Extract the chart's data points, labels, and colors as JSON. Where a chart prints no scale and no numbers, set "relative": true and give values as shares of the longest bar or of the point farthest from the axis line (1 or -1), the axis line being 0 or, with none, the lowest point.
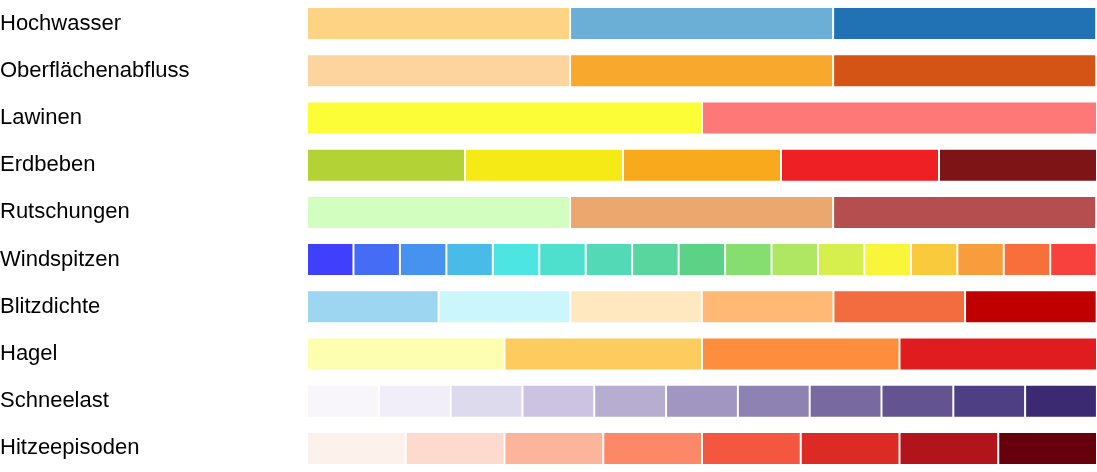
{
  "chart_data": {
    "type": "bar",
    "orientation": "horizontal",
    "stacked": true,
    "relative": true,
    "legend": false,
    "categories": [
      "Hochwasser",
      "Oberflächenabfluss",
      "Lawinen",
      "Erdbeben",
      "Rutschungen",
      "Windspitzen",
      "Blitzdichte",
      "Hagel",
      "Schneelast",
      "Hitzeepisoden"
    ],
    "series": [
      {
        "colors": [
          "#fed384",
          "#fdd49e",
          "#fdfd37",
          "#b2d235",
          "#d2ffc0",
          "#3f3ffc",
          "#9dd6f1",
          "#fefeb0",
          "#f8f5fb",
          "#fdf1ec"
        ],
        "values": [
          0.333,
          0.333,
          0.5,
          0.2,
          0.333,
          0.0588,
          0.1666,
          0.25,
          0.0909,
          0.125
        ]
      },
      {
        "colors": [
          "#6baed6",
          "#f8a92d",
          "#ff7878",
          "#f5e916",
          "#eaa86e",
          "#446cf5",
          "#cbf6fc",
          "#fecb5e",
          "#f1eefa",
          "#fddacd"
        ],
        "values": [
          0.333,
          0.333,
          0.5,
          0.2,
          0.333,
          0.0588,
          0.1666,
          0.25,
          0.0909,
          0.125
        ]
      },
      {
        "colors": [
          "#2171b5",
          "#d45416",
          null,
          "#f9aa1c",
          "#b54f4f",
          "#4593ee",
          "#ffe8c0",
          "#fe8d3e",
          "#dedaee",
          "#fcb49a"
        ],
        "values": [
          0.333,
          0.333,
          null,
          0.2,
          0.333,
          0.0588,
          0.1666,
          0.25,
          0.0909,
          0.125
        ]
      },
      {
        "colors": [
          null,
          null,
          null,
          "#ee2024",
          null,
          "#48bbe8",
          "#ffb975",
          "#e11c1e",
          "#cbc3e1",
          "#fc8868"
        ],
        "values": [
          null,
          null,
          null,
          0.2,
          null,
          0.0588,
          0.1666,
          0.25,
          0.0909,
          0.125
        ]
      },
      {
        "colors": [
          null,
          null,
          null,
          "#7f1416",
          null,
          "#4ce5e2",
          "#f36c40",
          null,
          "#b6add1",
          "#f5563f"
        ],
        "values": [
          null,
          null,
          null,
          0.2,
          null,
          0.0588,
          0.1666,
          null,
          0.0909,
          0.125
        ]
      },
      {
        "colors": [
          null,
          null,
          null,
          null,
          null,
          "#4fe0cd",
          "#c00000",
          null,
          "#a195c2",
          "#dc2a25"
        ],
        "values": [
          null,
          null,
          null,
          null,
          null,
          0.0588,
          0.1666,
          null,
          0.0909,
          0.125
        ]
      },
      {
        "colors": [
          null,
          null,
          null,
          null,
          null,
          "#53d9b6",
          null,
          null,
          "#8d82b2",
          "#b1141b"
        ],
        "values": [
          null,
          null,
          null,
          null,
          null,
          0.0588,
          null,
          null,
          0.0909,
          0.125
        ]
      },
      {
        "colors": [
          null,
          null,
          null,
          null,
          null,
          "#58d69e",
          null,
          null,
          "#786aa0",
          "#67000d"
        ],
        "values": [
          null,
          null,
          null,
          null,
          null,
          0.0588,
          null,
          null,
          0.0909,
          0.125
        ]
      },
      {
        "colors": [
          null,
          null,
          null,
          null,
          null,
          "#5cd287",
          null,
          null,
          "#635391",
          null
        ],
        "values": [
          null,
          null,
          null,
          null,
          null,
          0.0588,
          null,
          null,
          0.0909,
          null
        ]
      },
      {
        "colors": [
          null,
          null,
          null,
          null,
          null,
          "#86de70",
          null,
          null,
          "#4e3e83",
          null
        ],
        "values": [
          null,
          null,
          null,
          null,
          null,
          0.0588,
          null,
          null,
          0.0909,
          null
        ]
      },
      {
        "colors": [
          null,
          null,
          null,
          null,
          null,
          "#afe762",
          null,
          null,
          "#3b2a72",
          null
        ],
        "values": [
          null,
          null,
          null,
          null,
          null,
          0.0588,
          null,
          null,
          0.0909,
          null
        ]
      },
      {
        "colors": [
          null,
          null,
          null,
          null,
          null,
          "#d6ef4d",
          null,
          null,
          null,
          null
        ],
        "values": [
          null,
          null,
          null,
          null,
          null,
          0.0588,
          null,
          null,
          null,
          null
        ]
      },
      {
        "colors": [
          null,
          null,
          null,
          null,
          null,
          "#f8f53a",
          null,
          null,
          null,
          null
        ],
        "values": [
          null,
          null,
          null,
          null,
          null,
          0.0588,
          null,
          null,
          null,
          null
        ]
      },
      {
        "colors": [
          null,
          null,
          null,
          null,
          null,
          "#f9ca3c",
          null,
          null,
          null,
          null
        ],
        "values": [
          null,
          null,
          null,
          null,
          null,
          0.0588,
          null,
          null,
          null,
          null
        ]
      },
      {
        "colors": [
          null,
          null,
          null,
          null,
          null,
          "#f99d3c",
          null,
          null,
          null,
          null
        ],
        "values": [
          null,
          null,
          null,
          null,
          null,
          0.0588,
          null,
          null,
          null,
          null
        ]
      },
      {
        "colors": [
          null,
          null,
          null,
          null,
          null,
          "#f86f3c",
          null,
          null,
          null,
          null
        ],
        "values": [
          null,
          null,
          null,
          null,
          null,
          0.0588,
          null,
          null,
          null,
          null
        ]
      },
      {
        "colors": [
          null,
          null,
          null,
          null,
          null,
          "#f8403c",
          null,
          null,
          null,
          null
        ],
        "values": [
          null,
          null,
          null,
          null,
          null,
          0.0588,
          null,
          null,
          null,
          null
        ]
      }
    ]
  }
}
